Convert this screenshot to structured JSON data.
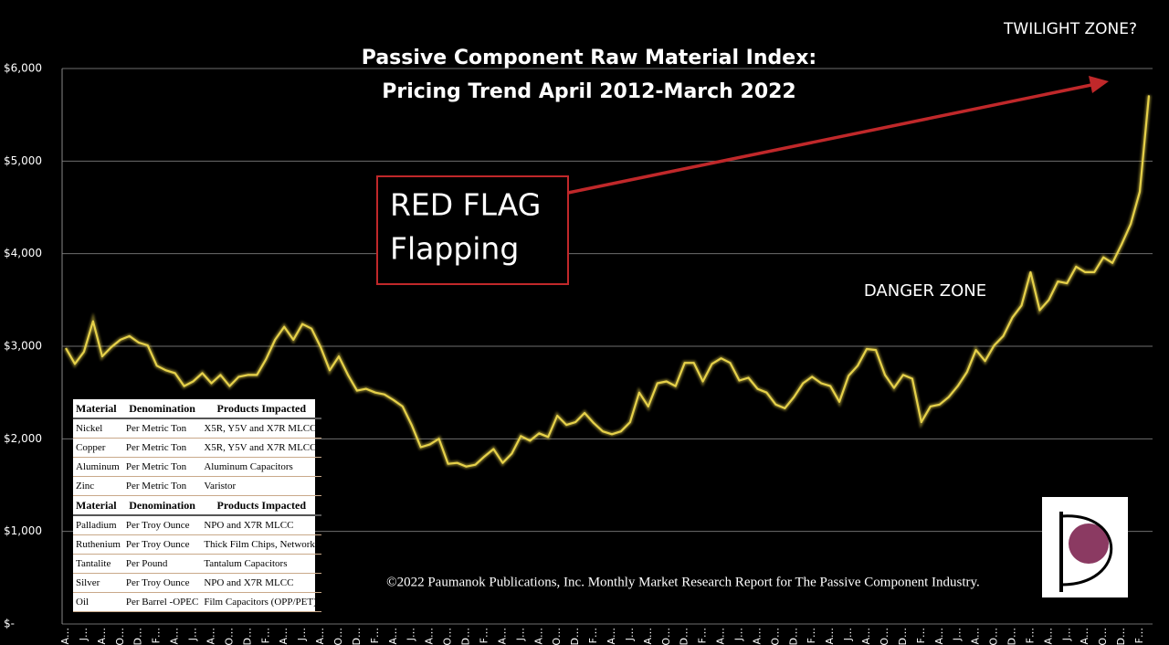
{
  "chart_data": {
    "type": "line",
    "title": "Passive Component Raw Material Index:",
    "subtitle": "Pricing Trend April 2012-March 2022",
    "categories": [
      "A…",
      null,
      "J…",
      null,
      "A…",
      null,
      "O…",
      null,
      "D…",
      null,
      "F…",
      null,
      "A…",
      null,
      "J…",
      null,
      "A…",
      null,
      "O…",
      null,
      "D…",
      null,
      "F…",
      null,
      "A…",
      null,
      "J…",
      null,
      "A…",
      null,
      "O…",
      null,
      "D…",
      null,
      "F…",
      null,
      "A…",
      null,
      "J…",
      null,
      "A…",
      null,
      "O…",
      null,
      "D…",
      null,
      "F…",
      null,
      "A…",
      null,
      "J…",
      null,
      "A…",
      null,
      "O…",
      null,
      "D…",
      null,
      "F…",
      null,
      "A…",
      null,
      "J…",
      null,
      "A…",
      null,
      "O…",
      null,
      "D…",
      null,
      "F…",
      null,
      "A…",
      null,
      "J…",
      null,
      "A…",
      null,
      "O…",
      null,
      "D…",
      null,
      "F…",
      null,
      "A…",
      null,
      "J…",
      null,
      "A…",
      null,
      "O…",
      null,
      "D…",
      null,
      "F…",
      null,
      "A…",
      null,
      "J…",
      null,
      "A…",
      null,
      "O…",
      null,
      "D…",
      null,
      "F…",
      null,
      "A…",
      null,
      "J…",
      null,
      "A…",
      null,
      "O…",
      null,
      "D…",
      null,
      "F…",
      null
    ],
    "values": [
      2980,
      2810,
      2940,
      3270,
      2890,
      2990,
      3070,
      3110,
      3040,
      3010,
      2790,
      2740,
      2710,
      2570,
      2620,
      2710,
      2600,
      2690,
      2570,
      2670,
      2690,
      2690,
      2860,
      3070,
      3210,
      3070,
      3240,
      3190,
      2990,
      2740,
      2890,
      2690,
      2520,
      2540,
      2500,
      2480,
      2420,
      2350,
      2150,
      1910,
      1940,
      2000,
      1730,
      1740,
      1700,
      1720,
      1810,
      1890,
      1740,
      1840,
      2030,
      1980,
      2060,
      2020,
      2250,
      2150,
      2180,
      2280,
      2170,
      2080,
      2050,
      2080,
      2180,
      2500,
      2350,
      2600,
      2620,
      2570,
      2820,
      2820,
      2620,
      2810,
      2870,
      2820,
      2630,
      2660,
      2540,
      2500,
      2370,
      2330,
      2450,
      2600,
      2670,
      2600,
      2570,
      2400,
      2680,
      2790,
      2970,
      2960,
      2690,
      2550,
      2690,
      2650,
      2180,
      2350,
      2370,
      2450,
      2570,
      2720,
      2960,
      2840,
      3010,
      3110,
      3310,
      3440,
      3800,
      3390,
      3500,
      3700,
      3680,
      3860,
      3800,
      3800,
      3960,
      3900,
      4100,
      4320,
      4670,
      5710
    ],
    "color": "#e6d14a",
    "ylim": [
      0,
      6000
    ],
    "yticks": [
      {
        "value": 0,
        "label": "$-"
      },
      {
        "value": 1000,
        "label": "$1,000"
      },
      {
        "value": 2000,
        "label": "$2,000"
      },
      {
        "value": 3000,
        "label": "$3,000"
      },
      {
        "value": 4000,
        "label": "$4,000"
      },
      {
        "value": 5000,
        "label": "$5,000"
      },
      {
        "value": 6000,
        "label": "$6,000"
      }
    ],
    "grid": true,
    "annotations": {
      "twilight": "TWILIGHT ZONE?",
      "danger": "DANGER ZONE",
      "red_flag": [
        "RED FLAG",
        "Flapping"
      ]
    }
  },
  "table": {
    "sections": [
      {
        "header": [
          "Material",
          "Denomination",
          "Products Impacted"
        ],
        "rows": [
          [
            "Nickel",
            "Per Metric Ton",
            "X5R, Y5V and X7R MLCC"
          ],
          [
            "Copper",
            "Per Metric Ton",
            "X5R, Y5V and X7R MLCC"
          ],
          [
            "Aluminum",
            "Per Metric Ton",
            "Aluminum Capacitors"
          ],
          [
            "Zinc",
            "Per Metric Ton",
            "Varistor"
          ]
        ]
      },
      {
        "header": [
          "Material",
          "Denomination",
          "Products Impacted"
        ],
        "rows": [
          [
            "Palladium",
            "Per Troy Ounce",
            "NPO and X7R MLCC"
          ],
          [
            "Ruthenium",
            "Per Troy Ounce",
            "Thick Film Chips, Networks"
          ],
          [
            "Tantalite",
            "Per Pound",
            "Tantalum Capacitors"
          ],
          [
            "Silver",
            "Per Troy Ounce",
            "NPO and X7R MLCC"
          ],
          [
            "Oil",
            "Per Barrel -OPEC",
            "Film Capacitors (OPP/PET)"
          ]
        ]
      }
    ]
  },
  "footer": "©2022 Paumanok Publications, Inc. Monthly Market Research Report for The Passive Component Industry."
}
